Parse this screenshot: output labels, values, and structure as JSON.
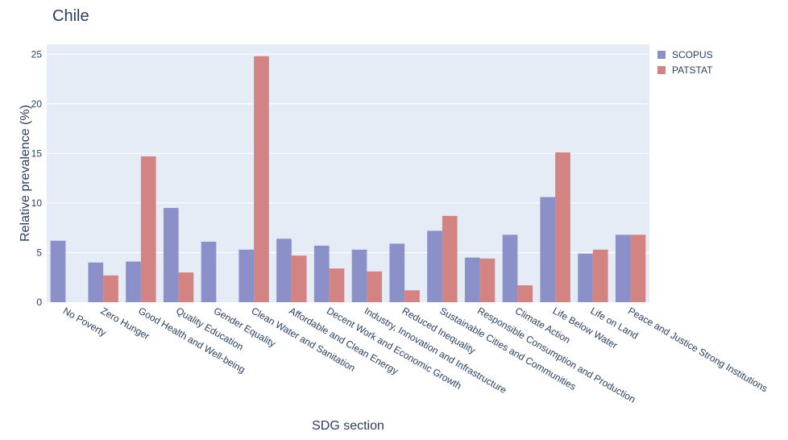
{
  "chart_data": {
    "type": "bar",
    "title": "Chile",
    "xlabel": "SDG section",
    "ylabel": "Relative prevalence (%)",
    "ylim": [
      0,
      26
    ],
    "yticks": [
      0,
      5,
      10,
      15,
      20,
      25
    ],
    "grid": true,
    "legend": "top-right",
    "categories": [
      "No Poverty",
      "Zero Hunger",
      "Good Health and Well-being",
      "Quality Education",
      "Gender Equality",
      "Clean Water and Sanitation",
      "Affordable and Clean Energy",
      "Decent Work and Economic Growth",
      "Industry, Innovation and Infrastructure",
      "Reduced Inequality",
      "Sustainable Cities and Communities",
      "Responsible Consumption and Production",
      "Climate Action",
      "Life Below Water",
      "Life on Land",
      "Peace and Justice Strong Institutions"
    ],
    "series": [
      {
        "name": "SCOPUS",
        "color": "#8b90c9",
        "values": [
          6.2,
          4.0,
          4.1,
          9.5,
          6.1,
          5.3,
          6.4,
          5.7,
          5.3,
          5.9,
          7.2,
          4.5,
          6.8,
          10.6,
          4.9,
          6.8
        ]
      },
      {
        "name": "PATSTAT",
        "color": "#d48383",
        "values": [
          0,
          2.7,
          14.7,
          3.0,
          0,
          24.8,
          4.7,
          3.4,
          3.1,
          1.2,
          8.7,
          4.4,
          1.7,
          15.1,
          5.3,
          6.8
        ]
      }
    ]
  }
}
